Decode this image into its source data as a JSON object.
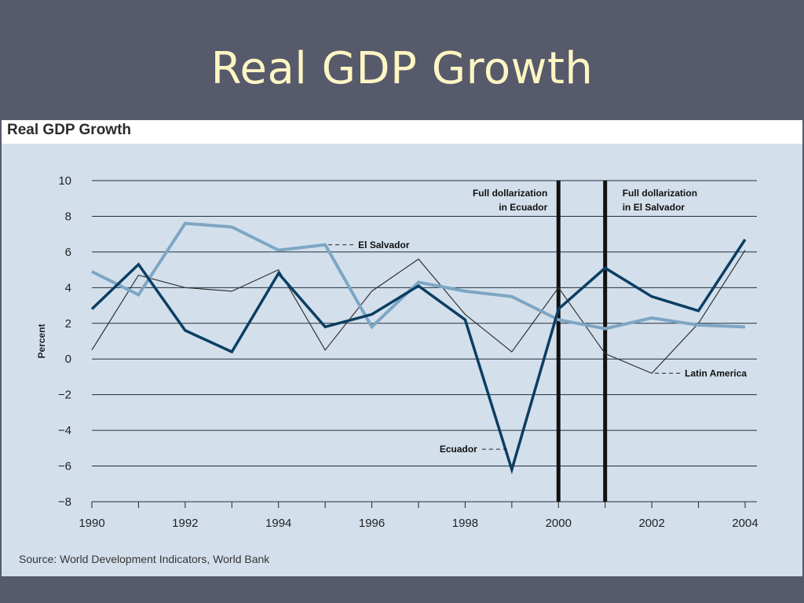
{
  "slide_title": "Real GDP Growth",
  "panel_title": "Real GDP Growth",
  "source": "Source: World Development Indicators, World Bank",
  "colors": {
    "background": "#575a6b",
    "title": "#fdf6c3",
    "panel": "#d3e0ec",
    "ecuador": "#0c3e63",
    "el_salvador": "#7ea6c4",
    "latin_america": "#333333",
    "event_line": "#111111"
  },
  "chart_data": {
    "type": "line",
    "title": "Real GDP Growth",
    "ylabel": "Percent",
    "xlabel": "",
    "xlim": [
      1990,
      2004
    ],
    "ylim": [
      -8,
      10
    ],
    "grid": "horizontal",
    "x": [
      1990,
      1991,
      1992,
      1993,
      1994,
      1995,
      1996,
      1997,
      1998,
      1999,
      2000,
      2001,
      2002,
      2003,
      2004
    ],
    "x_ticks": [
      "1990",
      "1992",
      "1994",
      "1996",
      "1998",
      "2000",
      "2002",
      "2004"
    ],
    "y_ticks": [
      "10",
      "8",
      "6",
      "4",
      "2",
      "0",
      "−2",
      "−4",
      "−6",
      "−8"
    ],
    "series": [
      {
        "name": "Ecuador",
        "values": [
          2.8,
          5.3,
          1.6,
          0.4,
          4.8,
          1.8,
          2.5,
          4.1,
          2.2,
          -6.2,
          2.8,
          5.1,
          3.5,
          2.7,
          6.7
        ]
      },
      {
        "name": "El Salvador",
        "values": [
          4.9,
          3.6,
          7.6,
          7.4,
          6.1,
          6.4,
          1.8,
          4.3,
          3.8,
          3.5,
          2.2,
          1.7,
          2.3,
          1.9,
          1.8
        ]
      },
      {
        "name": "Latin America",
        "values": [
          0.5,
          4.7,
          4.0,
          3.8,
          5.0,
          0.5,
          3.8,
          5.6,
          2.5,
          0.4,
          4.0,
          0.3,
          -0.8,
          2.0,
          6.1
        ]
      }
    ],
    "events": [
      {
        "x": 2000,
        "label": [
          "Full dollarization",
          "in Ecuador"
        ]
      },
      {
        "x": 2001,
        "label": [
          "Full dollarization",
          "in El Salvador"
        ]
      }
    ]
  }
}
